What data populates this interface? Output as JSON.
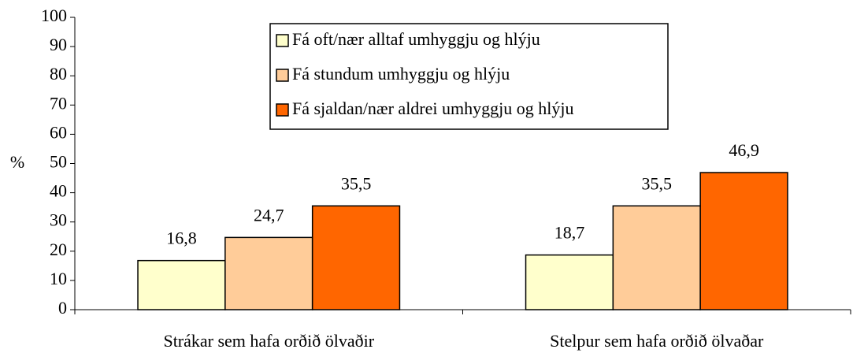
{
  "chart_data": {
    "type": "bar",
    "y_label": "%",
    "categories": [
      "Strákar sem hafa orðið ölvaðir",
      "Stelpur sem hafa orðið ölvaðar"
    ],
    "series": [
      {
        "name": "Fá oft/nær alltaf umhyggju og hlýju",
        "color": "#ffffcc",
        "values": [
          16.8,
          18.7
        ],
        "value_labels": [
          "16,8",
          "18,7"
        ]
      },
      {
        "name": "Fá stundum umhyggju og hlýju",
        "color": "#ffcc99",
        "values": [
          24.7,
          35.5
        ],
        "value_labels": [
          "24,7",
          "35,5"
        ]
      },
      {
        "name": "Fá sjaldan/nær aldrei umhyggju og hlýju",
        "color": "#ff6600",
        "values": [
          35.5,
          46.9
        ],
        "value_labels": [
          "35,5",
          "46,9"
        ]
      }
    ],
    "ylim": [
      0,
      100
    ],
    "yticks": [
      0,
      10,
      20,
      30,
      40,
      50,
      60,
      70,
      80,
      90,
      100
    ],
    "grid": false,
    "legend": "top"
  }
}
